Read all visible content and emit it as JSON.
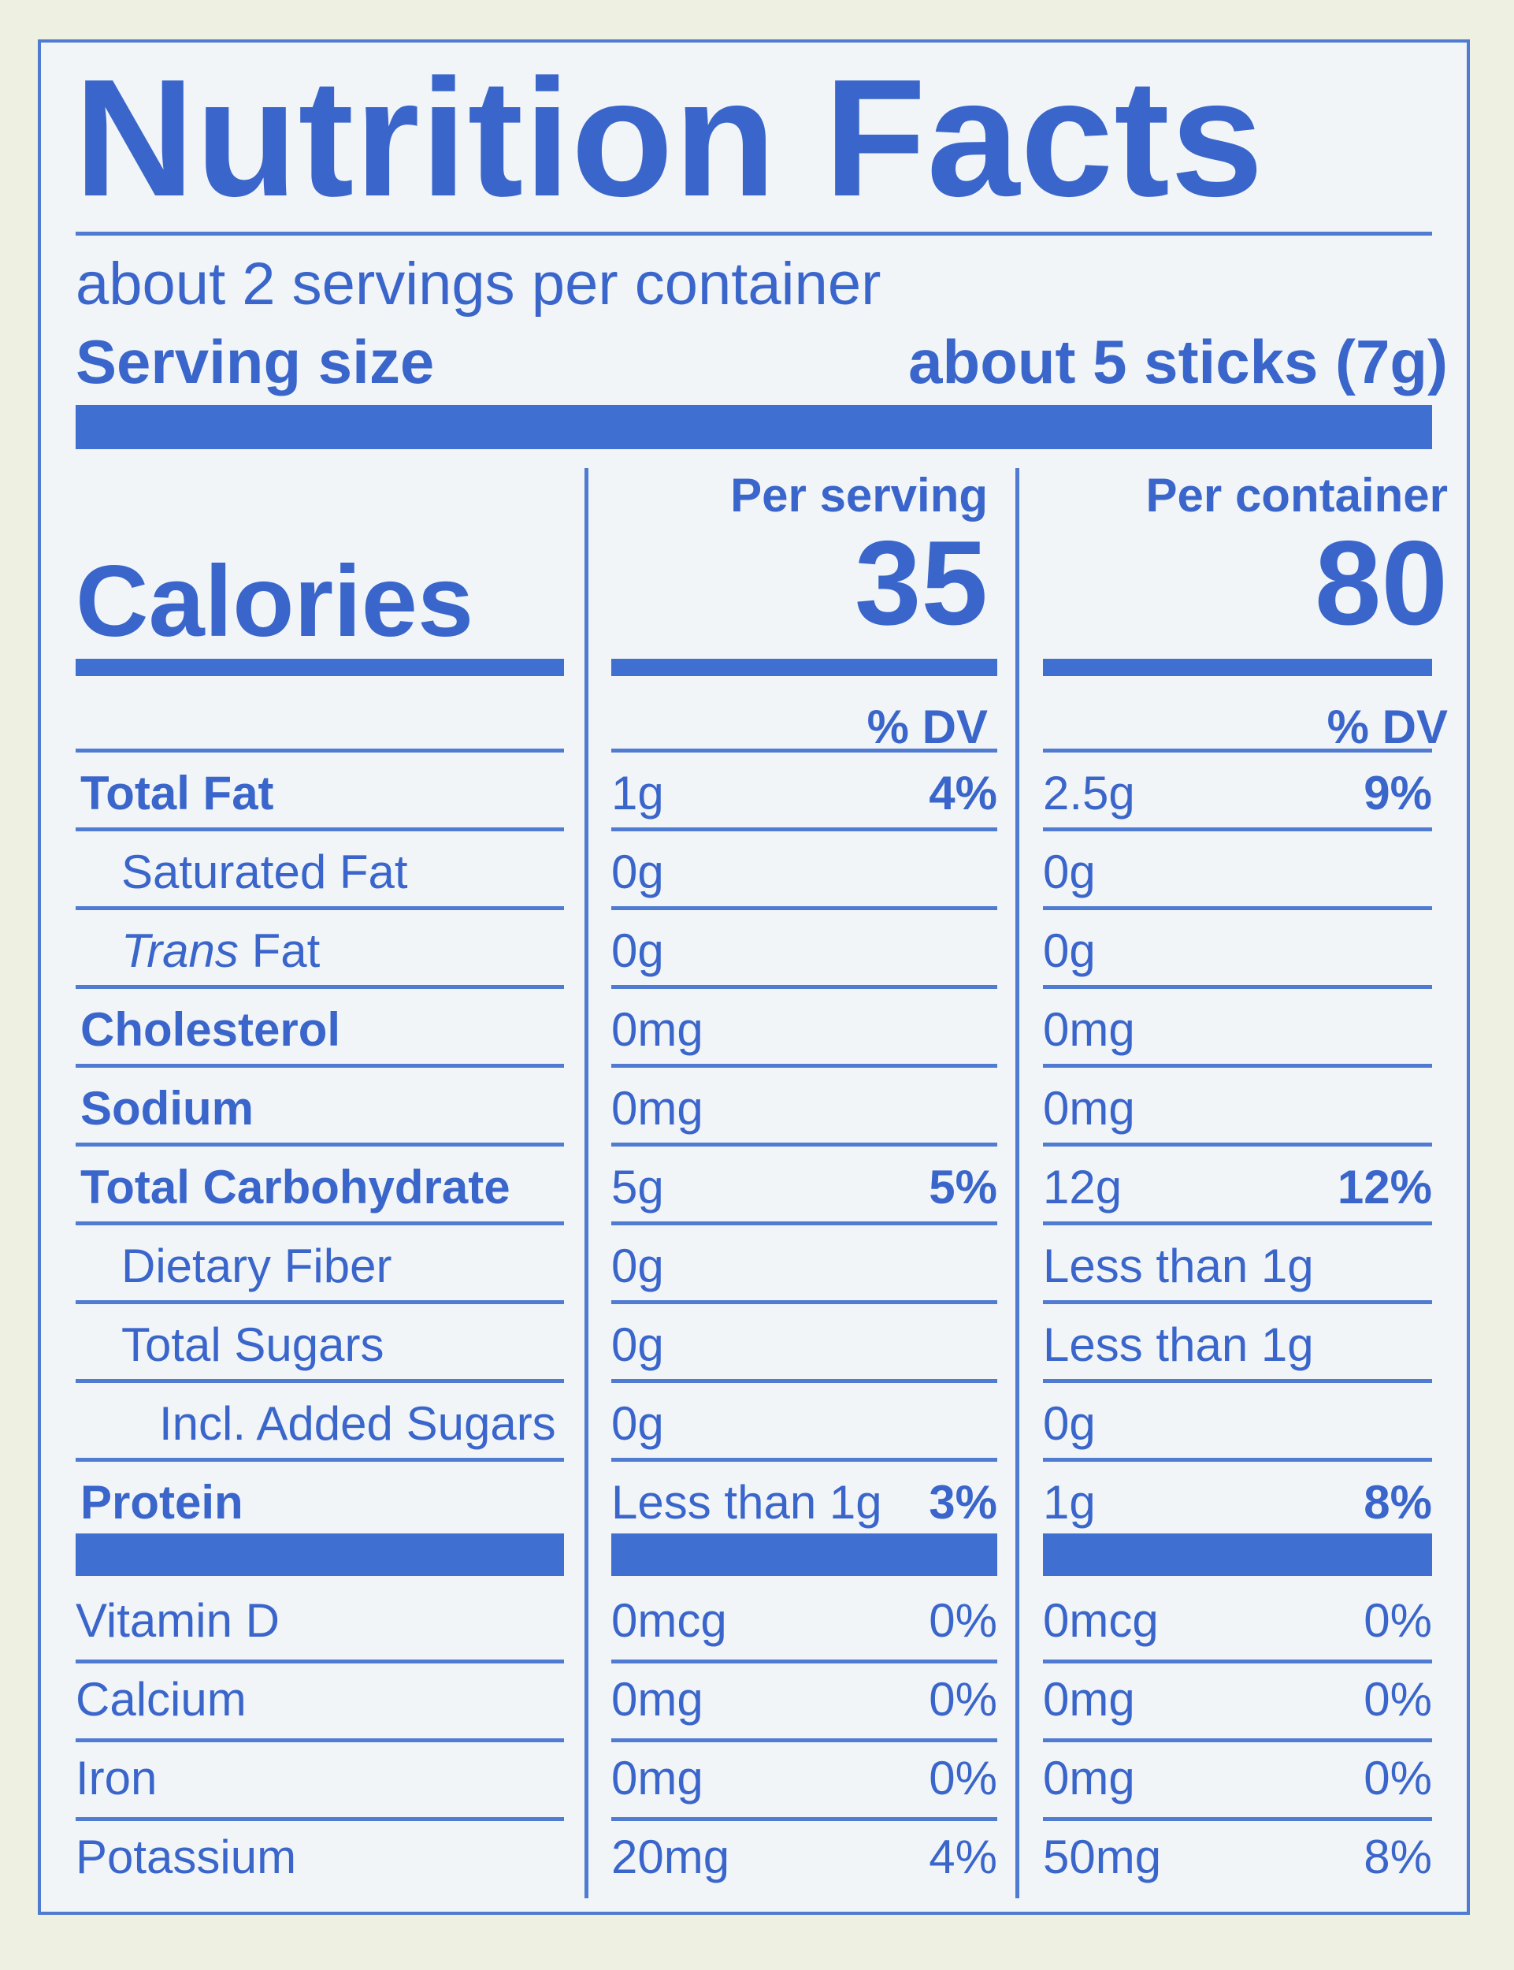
{
  "title": "Nutrition Facts",
  "servings_per_container": "about 2 servings per container",
  "serving_size_label": "Serving size",
  "serving_size_value": "about 5 sticks (7g)",
  "calories_label": "Calories",
  "columns": [
    {
      "header": "Per serving",
      "calories": "35",
      "dv_header": "% DV"
    },
    {
      "header": "Per container",
      "calories": "80",
      "dv_header": "% DV"
    }
  ],
  "nutrients": [
    {
      "name": "Total Fat",
      "bold": true,
      "indent": 0,
      "serving": "1g",
      "serving_dv": "4%",
      "container": "2.5g",
      "container_dv": "9%"
    },
    {
      "name": "Saturated Fat",
      "bold": false,
      "indent": 1,
      "serving": "0g",
      "serving_dv": "",
      "container": "0g",
      "container_dv": ""
    },
    {
      "name_italic": "Trans",
      "name": " Fat",
      "bold": false,
      "indent": 1,
      "serving": "0g",
      "serving_dv": "",
      "container": "0g",
      "container_dv": ""
    },
    {
      "name": "Cholesterol",
      "bold": true,
      "indent": 0,
      "serving": "0mg",
      "serving_dv": "",
      "container": "0mg",
      "container_dv": ""
    },
    {
      "name": "Sodium",
      "bold": true,
      "indent": 0,
      "serving": "0mg",
      "serving_dv": "",
      "container": "0mg",
      "container_dv": ""
    },
    {
      "name": "Total Carbohydrate",
      "bold": true,
      "indent": 0,
      "serving": "5g",
      "serving_dv": "5%",
      "container": "12g",
      "container_dv": "12%"
    },
    {
      "name": "Dietary Fiber",
      "bold": false,
      "indent": 1,
      "serving": "0g",
      "serving_dv": "",
      "container": "Less than 1g",
      "container_dv": ""
    },
    {
      "name": "Total Sugars",
      "bold": false,
      "indent": 1,
      "serving": "0g",
      "serving_dv": "",
      "container": "Less than 1g",
      "container_dv": ""
    },
    {
      "name": "Incl. Added Sugars",
      "bold": false,
      "indent": 2,
      "serving": "0g",
      "serving_dv": "",
      "container": "0g",
      "container_dv": ""
    },
    {
      "name": "Protein",
      "bold": true,
      "indent": 0,
      "serving": "Less than 1g",
      "serving_dv": "3%",
      "container": "1g",
      "container_dv": "8%"
    }
  ],
  "vitamins": [
    {
      "name": "Vitamin D",
      "serving": "0mcg",
      "serving_dv": "0%",
      "container": "0mcg",
      "container_dv": "0%"
    },
    {
      "name": "Calcium",
      "serving": "0mg",
      "serving_dv": "0%",
      "container": "0mg",
      "container_dv": "0%"
    },
    {
      "name": "Iron",
      "serving": "0mg",
      "serving_dv": "0%",
      "container": "0mg",
      "container_dv": "0%"
    },
    {
      "name": "Potassium",
      "serving": "20mg",
      "serving_dv": "4%",
      "container": "50mg",
      "container_dv": "8%"
    }
  ]
}
